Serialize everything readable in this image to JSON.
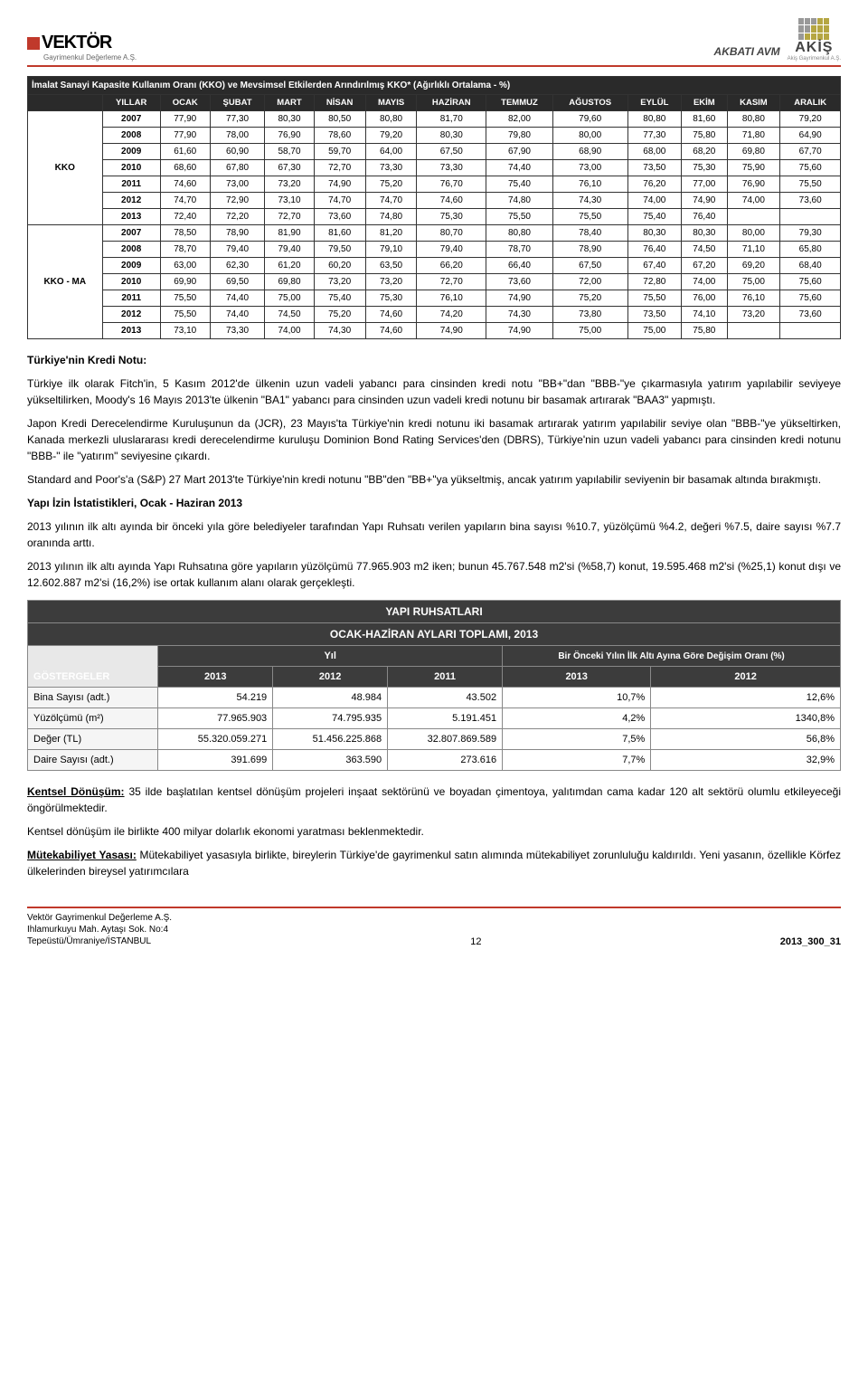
{
  "header": {
    "vektor_name": "VEKTÖR",
    "vektor_sub": "Gayrimenkul Değerleme A.Ş.",
    "project": "AKBATI AVM",
    "akis_name": "AKİŞ",
    "akis_sub": "Akiş Gayrimenkul A.Ş."
  },
  "kko": {
    "caption": "İmalat Sanayi Kapasite Kullanım Oranı (KKO) ve Mevsimsel Etkilerden Arındırılmış KKO* (Ağırlıklı Ortalama - %)",
    "col_headers": [
      "YILLAR",
      "OCAK",
      "ŞUBAT",
      "MART",
      "NİSAN",
      "MAYIS",
      "HAZİRAN",
      "TEMMUZ",
      "AĞUSTOS",
      "EYLÜL",
      "EKİM",
      "KASIM",
      "ARALIK"
    ],
    "groups": [
      {
        "label": "KKO",
        "rows": [
          [
            "2007",
            "77,90",
            "77,30",
            "80,30",
            "80,50",
            "80,80",
            "81,70",
            "82,00",
            "79,60",
            "80,80",
            "81,60",
            "80,80",
            "79,20"
          ],
          [
            "2008",
            "77,90",
            "78,00",
            "76,90",
            "78,60",
            "79,20",
            "80,30",
            "79,80",
            "80,00",
            "77,30",
            "75,80",
            "71,80",
            "64,90"
          ],
          [
            "2009",
            "61,60",
            "60,90",
            "58,70",
            "59,70",
            "64,00",
            "67,50",
            "67,90",
            "68,90",
            "68,00",
            "68,20",
            "69,80",
            "67,70"
          ],
          [
            "2010",
            "68,60",
            "67,80",
            "67,30",
            "72,70",
            "73,30",
            "73,30",
            "74,40",
            "73,00",
            "73,50",
            "75,30",
            "75,90",
            "75,60"
          ],
          [
            "2011",
            "74,60",
            "73,00",
            "73,20",
            "74,90",
            "75,20",
            "76,70",
            "75,40",
            "76,10",
            "76,20",
            "77,00",
            "76,90",
            "75,50"
          ],
          [
            "2012",
            "74,70",
            "72,90",
            "73,10",
            "74,70",
            "74,70",
            "74,60",
            "74,80",
            "74,30",
            "74,00",
            "74,90",
            "74,00",
            "73,60"
          ],
          [
            "2013",
            "72,40",
            "72,20",
            "72,70",
            "73,60",
            "74,80",
            "75,30",
            "75,50",
            "75,50",
            "75,40",
            "76,40",
            "",
            ""
          ]
        ]
      },
      {
        "label": "KKO - MA",
        "rows": [
          [
            "2007",
            "78,50",
            "78,90",
            "81,90",
            "81,60",
            "81,20",
            "80,70",
            "80,80",
            "78,40",
            "80,30",
            "80,30",
            "80,00",
            "79,30"
          ],
          [
            "2008",
            "78,70",
            "79,40",
            "79,40",
            "79,50",
            "79,10",
            "79,40",
            "78,70",
            "78,90",
            "76,40",
            "74,50",
            "71,10",
            "65,80"
          ],
          [
            "2009",
            "63,00",
            "62,30",
            "61,20",
            "60,20",
            "63,50",
            "66,20",
            "66,40",
            "67,50",
            "67,40",
            "67,20",
            "69,20",
            "68,40"
          ],
          [
            "2010",
            "69,90",
            "69,50",
            "69,80",
            "73,20",
            "73,20",
            "72,70",
            "73,60",
            "72,00",
            "72,80",
            "74,00",
            "75,00",
            "75,60"
          ],
          [
            "2011",
            "75,50",
            "74,40",
            "75,00",
            "75,40",
            "75,30",
            "76,10",
            "74,90",
            "75,20",
            "75,50",
            "76,00",
            "76,10",
            "75,60"
          ],
          [
            "2012",
            "75,50",
            "74,40",
            "74,50",
            "75,20",
            "74,60",
            "74,20",
            "74,30",
            "73,80",
            "73,50",
            "74,10",
            "73,20",
            "73,60"
          ],
          [
            "2013",
            "73,10",
            "73,30",
            "74,00",
            "74,30",
            "74,60",
            "74,90",
            "74,90",
            "75,00",
            "75,00",
            "75,80",
            "",
            ""
          ]
        ]
      }
    ]
  },
  "body": {
    "h1": "Türkiye'nin Kredi Notu:",
    "p1": "Türkiye ilk olarak Fitch'in, 5 Kasım 2012'de ülkenin uzun vadeli yabancı para cinsinden kredi notu \"BB+\"dan \"BBB-\"ye çıkarmasıyla yatırım yapılabilir seviyeye yükseltilirken, Moody's 16 Mayıs 2013'te ülkenin \"BA1\" yabancı para cinsinden uzun vadeli kredi notunu bir basamak artırarak \"BAA3\" yapmıştı.",
    "p2": "Japon Kredi Derecelendirme Kuruluşunun da (JCR), 23 Mayıs'ta Türkiye'nin kredi notunu iki basamak artırarak yatırım yapılabilir seviye olan \"BBB-\"ye yükseltirken, Kanada merkezli uluslararası kredi derecelendirme kuruluşu Dominion Bond Rating Services'den (DBRS), Türkiye'nin uzun vadeli yabancı para cinsinden kredi notunu \"BBB-\" ile \"yatırım\" seviyesine çıkardı.",
    "p3": "Standard and Poor's'a (S&P) 27 Mart 2013'te Türkiye'nin kredi notunu \"BB\"den \"BB+\"ya yükseltmiş, ancak yatırım yapılabilir seviyenin bir basamak altında bırakmıştı.",
    "h2": "Yapı İzin İstatistikleri, Ocak - Haziran 2013",
    "p4": "2013 yılının ilk altı ayında bir önceki yıla göre belediyeler tarafından Yapı Ruhsatı verilen yapıların bina sayısı %10.7, yüzölçümü %4.2, değeri %7.5, daire sayısı %7.7 oranında arttı.",
    "p5": "2013 yılının ilk altı ayında Yapı Ruhsatına göre yapıların yüzölçümü 77.965.903 m2 iken; bunun 45.767.548 m2'si (%58,7) konut, 19.595.468 m2'si (%25,1) konut dışı ve 12.602.887 m2'si (16,2%) ise ortak kullanım alanı olarak gerçekleşti.",
    "h_kd": "Kentsel Dönüşüm:",
    "p6": " 35 ilde başlatılan kentsel dönüşüm projeleri inşaat sektörünü ve boyadan çimentoya, yalıtımdan cama kadar 120 alt sektörü olumlu etkileyeceği öngörülmektedir.",
    "p7": "Kentsel dönüşüm ile birlikte 400 milyar dolarlık ekonomi yaratması beklenmektedir.",
    "h_my": "Mütekabiliyet Yasası:",
    "p8": " Mütekabiliyet yasasıyla birlikte, bireylerin Türkiye'de gayrimenkul satın alımında mütekabiliyet zorunluluğu kaldırıldı. Yeni yasanın, özellikle Körfez ülkelerinden bireysel yatırımcılara"
  },
  "ruhsat": {
    "title1": "YAPI RUHSATLARI",
    "title2": "OCAK-HAZİRAN AYLARI TOPLAMI, 2013",
    "yil": "Yıl",
    "gost": "GÖSTERGELER",
    "sub_header": "Bir Önceki Yılın İlk Altı Ayına Göre Değişim Oranı (%)",
    "years": [
      "2013",
      "2012",
      "2011",
      "2013",
      "2012"
    ],
    "rows": [
      {
        "label": "Bina Sayısı (adt.)",
        "v": [
          "54.219",
          "48.984",
          "43.502",
          "10,7%",
          "12,6%"
        ]
      },
      {
        "label": "Yüzölçümü (m²)",
        "v": [
          "77.965.903",
          "74.795.935",
          "5.191.451",
          "4,2%",
          "1340,8%"
        ]
      },
      {
        "label": "Değer (TL)",
        "v": [
          "55.320.059.271",
          "51.456.225.868",
          "32.807.869.589",
          "7,5%",
          "56,8%"
        ]
      },
      {
        "label": "Daire Sayısı (adt.)",
        "v": [
          "391.699",
          "363.590",
          "273.616",
          "7,7%",
          "32,9%"
        ]
      }
    ]
  },
  "footer": {
    "l1": "Vektör Gayrimenkul Değerleme A.Ş.",
    "l2": "Ihlamurkuyu Mah. Aytaşı Sok. No:4",
    "l3": "Tepeüstü/Ümraniye/İSTANBUL",
    "page": "12",
    "ref": "2013_300_31"
  }
}
